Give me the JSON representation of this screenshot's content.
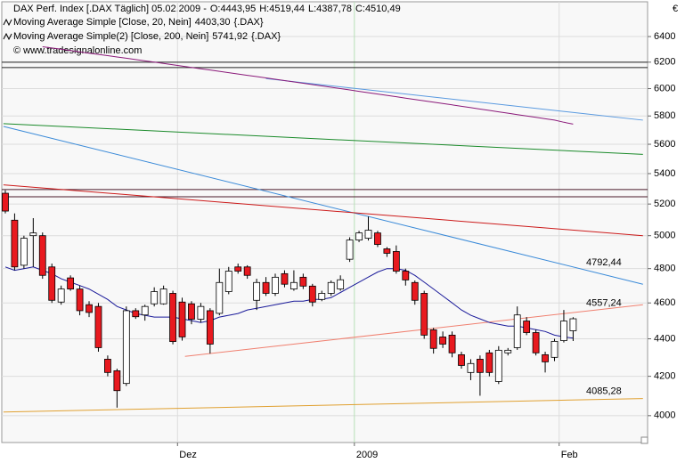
{
  "chart_data": {
    "type": "candlestick",
    "header": {
      "title": "DAX Perf. Index [.DAX  Täglich] 05.02.2009 -",
      "open": "O:4443,95",
      "high": "H:4519,44",
      "low": "L:4387,78",
      "close": "C:4510,49"
    },
    "copyright": "© www.tradesignalonline.com",
    "currency": "€",
    "log_scale": true,
    "grid": true,
    "up_color": "#ffffff",
    "down_color": "#e8191f",
    "categories": [
      null,
      null,
      null,
      null,
      null,
      null,
      null,
      null,
      null,
      null,
      null,
      null,
      null,
      null,
      null,
      null,
      null,
      null,
      null,
      null,
      null,
      null,
      null,
      null,
      null,
      null,
      null,
      null,
      null,
      null,
      null,
      null,
      null,
      null,
      null,
      null,
      null,
      null,
      null,
      null,
      null,
      null,
      null,
      null,
      null,
      null,
      null,
      null,
      null,
      null,
      null,
      null,
      null,
      null,
      null,
      null,
      null,
      null,
      null,
      null,
      null,
      null
    ],
    "xlim": [
      -0.38,
      69
    ],
    "xticks": [
      {
        "value": 19,
        "label": "Dez"
      },
      {
        "value": 38,
        "label": "2009"
      },
      {
        "value": 60,
        "label": "Feb"
      }
    ],
    "ylim": [
      3869,
      6682
    ],
    "yticks": [
      4000,
      4200,
      4400,
      4600,
      4800,
      5000,
      5200,
      5400,
      5600,
      5800,
      6000,
      6200,
      6400
    ],
    "open": [
      5270,
      5097,
      4820,
      5000,
      5000,
      4810,
      4605,
      4745,
      4680,
      4590,
      4580,
      4290,
      4229,
      4163,
      4556,
      4532,
      4595,
      4595,
      4655,
      4605,
      4595,
      4508,
      4556,
      4541,
      4665,
      4810,
      4810,
      4615,
      4718,
      4655,
      4770,
      4680,
      4749,
      4697,
      4620,
      4655,
      4680,
      4856,
      4973,
      4984,
      5017,
      4919,
      4903,
      4785,
      4718,
      4655,
      4449,
      4410,
      4420,
      4314,
      4220,
      4290,
      4324,
      4173,
      4324,
      4352,
      4498,
      4434,
      4314,
      4300,
      4390,
      4443.95
    ],
    "high": [
      5290,
      5140,
      5000,
      5110,
      5020,
      4830,
      4700,
      4760,
      4700,
      4610,
      4600,
      4310,
      4240,
      4580,
      4570,
      4590,
      4690,
      4700,
      4670,
      4630,
      4610,
      4600,
      4570,
      4800,
      4810,
      4830,
      4820,
      4740,
      4750,
      4770,
      4790,
      4790,
      4770,
      4710,
      4670,
      4730,
      4760,
      4990,
      5030,
      5120,
      5030,
      4930,
      4940,
      4800,
      4730,
      4670,
      4460,
      4440,
      4440,
      4330,
      4290,
      4310,
      4340,
      4360,
      4350,
      4580,
      4520,
      4450,
      4330,
      4400,
      4560,
      4519.44
    ],
    "low": [
      5140,
      4790,
      4800,
      4810,
      4740,
      4600,
      4590,
      4670,
      4530,
      4520,
      4330,
      4200,
      4040,
      4150,
      4510,
      4500,
      4580,
      4590,
      4370,
      4390,
      4480,
      4490,
      4320,
      4530,
      4650,
      4770,
      4740,
      4560,
      4640,
      4640,
      4690,
      4670,
      4680,
      4580,
      4610,
      4640,
      4670,
      4840,
      4960,
      4970,
      4930,
      4870,
      4770,
      4700,
      4590,
      4400,
      4320,
      4350,
      4300,
      4240,
      4180,
      4100,
      4200,
      4160,
      4310,
      4340,
      4420,
      4310,
      4220,
      4280,
      4380,
      4387.78
    ],
    "close": [
      5155,
      4810,
      4984,
      5017,
      4760,
      4615,
      4680,
      4680,
      4556,
      4546,
      4352,
      4220,
      4126,
      4556,
      4522,
      4580,
      4665,
      4680,
      4385,
      4410,
      4508,
      4580,
      4371,
      4718,
      4785,
      4785,
      4760,
      4718,
      4655,
      4749,
      4708,
      4718,
      4697,
      4605,
      4655,
      4718,
      4734,
      4973,
      5017,
      5034,
      4946,
      4892,
      4785,
      4733,
      4615,
      4420,
      4348,
      4371,
      4324,
      4257,
      4267,
      4220,
      4220,
      4338,
      4338,
      4532,
      4434,
      4324,
      4276,
      4386,
      4498,
      4510.49
    ],
    "series": [
      {
        "name": "Moving Average Simple [Close, 20, Nein]",
        "color": "#1a1a9a",
        "legend_value": "4403,30",
        "symbol": "{.DAX}",
        "values": [
          4810,
          4790,
          4800,
          4810,
          4790,
          4770,
          4740,
          4720,
          4700,
          4680,
          4650,
          4620,
          4580,
          4560,
          4540,
          4530,
          4520,
          4520,
          4520,
          4510,
          4500,
          4490,
          4500,
          4520,
          4530,
          4540,
          4560,
          4570,
          4580,
          4590,
          4600,
          4610,
          4610,
          4620,
          4620,
          4630,
          4660,
          4690,
          4720,
          4750,
          4780,
          4800,
          4800,
          4790,
          4760,
          4720,
          4680,
          4640,
          4600,
          4560,
          4530,
          4510,
          4490,
          4480,
          4470,
          4470,
          4460,
          4450,
          4440,
          4420,
          4410,
          4403.3
        ]
      },
      {
        "name": "Moving Average Simple(2) [Close, 200, Nein]",
        "color": "#8b1a7a",
        "legend_value": "5741,92",
        "symbol": "{.DAX}",
        "values": [
          null,
          null,
          null,
          null,
          6320,
          6310,
          6300,
          6290,
          6280,
          6270,
          6260,
          6250,
          6240,
          6230,
          6220,
          6210,
          6200,
          6190,
          6180,
          6170,
          6160,
          6150,
          6140,
          6130,
          6120,
          6110,
          6100,
          6090,
          6080,
          6070,
          6060,
          6050,
          6040,
          6030,
          6020,
          6010,
          6000,
          5990,
          5980,
          5970,
          5960,
          5950,
          5940,
          5930,
          5920,
          5910,
          5900,
          5890,
          5880,
          5870,
          5860,
          5850,
          5840,
          5830,
          5820,
          5810,
          5800,
          5790,
          5780,
          5770,
          5755,
          5741.92
        ]
      }
    ],
    "trendlines": [
      {
        "color": "#222222",
        "x": [
          -0.38,
          69
        ],
        "values": [
          6200,
          6200
        ]
      },
      {
        "color": "#222222",
        "x": [
          -0.38,
          69
        ],
        "values": [
          6159,
          6159
        ]
      },
      {
        "color": "#4a1a2a",
        "x": [
          -0.38,
          69
        ],
        "values": [
          5294,
          5294
        ]
      },
      {
        "color": "#4a1a2a",
        "x": [
          -0.38,
          69
        ],
        "values": [
          5247,
          5247
        ]
      },
      {
        "color": "#3a8ad8",
        "x": [
          -0.2,
          68.5
        ],
        "values": [
          5725,
          4708
        ],
        "value": 4792.44,
        "value_label": "4792,44"
      },
      {
        "color": "#5a9ae0",
        "x": [
          28,
          68.5
        ],
        "values": [
          6075,
          5770
        ]
      },
      {
        "color": "#1a8a2a",
        "x": [
          -0.2,
          68.5
        ],
        "values": [
          5745,
          5530
        ]
      },
      {
        "color": "#cc1a1a",
        "x": [
          -0.2,
          68.5
        ],
        "values": [
          5325,
          5000
        ]
      },
      {
        "color": "#f08070",
        "x": [
          19.3,
          68.5
        ],
        "values": [
          4305,
          4590
        ],
        "value": 4557.24,
        "value_label": "4557,24"
      },
      {
        "color": "#e0a030",
        "x": [
          -0.2,
          68.5
        ],
        "values": [
          4018,
          4086
        ],
        "value": 4085.28,
        "value_label": "4085,28"
      }
    ]
  }
}
